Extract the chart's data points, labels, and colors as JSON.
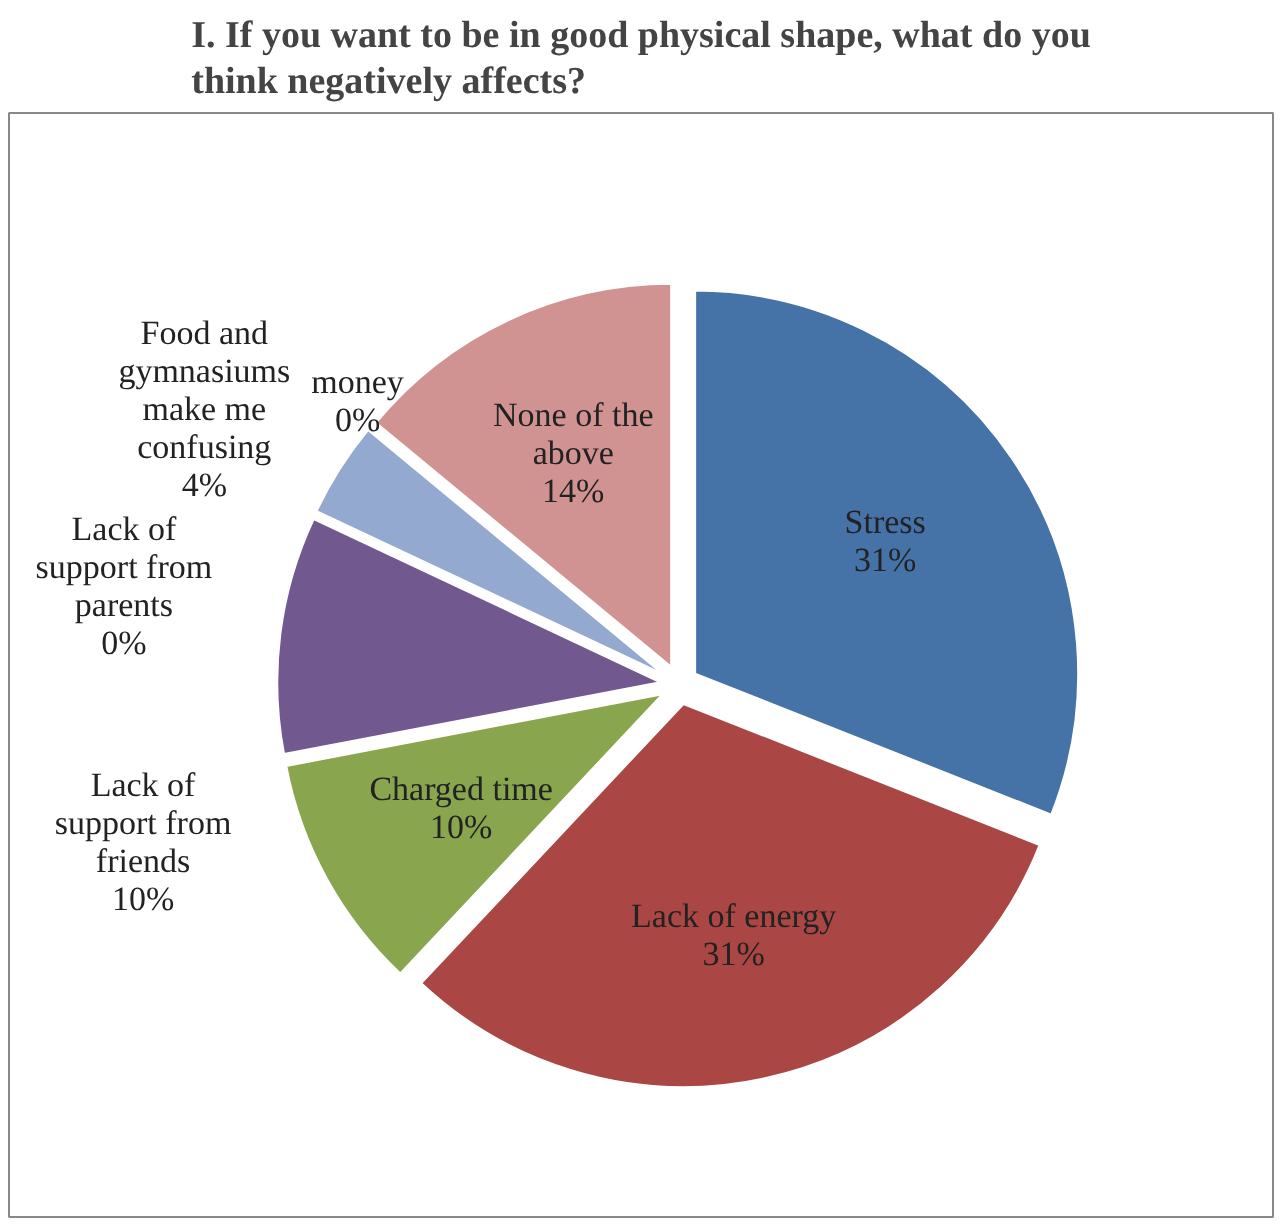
{
  "chart_data": {
    "type": "pie",
    "title": "I. If you want to be in good physical shape, what do you think negatively affects?",
    "categories": [
      "Stress",
      "Lack of energy",
      "Charged time",
      "Lack of support from friends",
      "Lack of support from parents",
      "money",
      "Food and gymnasiums make me confusing",
      "None of the above"
    ],
    "values": [
      31,
      31,
      10,
      10,
      0,
      0,
      4,
      14
    ],
    "colors": [
      "#4572a7",
      "#aa4643",
      "#89a54e",
      "#71588f",
      "#4198af",
      "#db843d",
      "#93a9cf",
      "#d19392"
    ],
    "value_labels": [
      "31%",
      "31%",
      "10%",
      "10%",
      "0%",
      "0%",
      "4%",
      "14%"
    ]
  }
}
